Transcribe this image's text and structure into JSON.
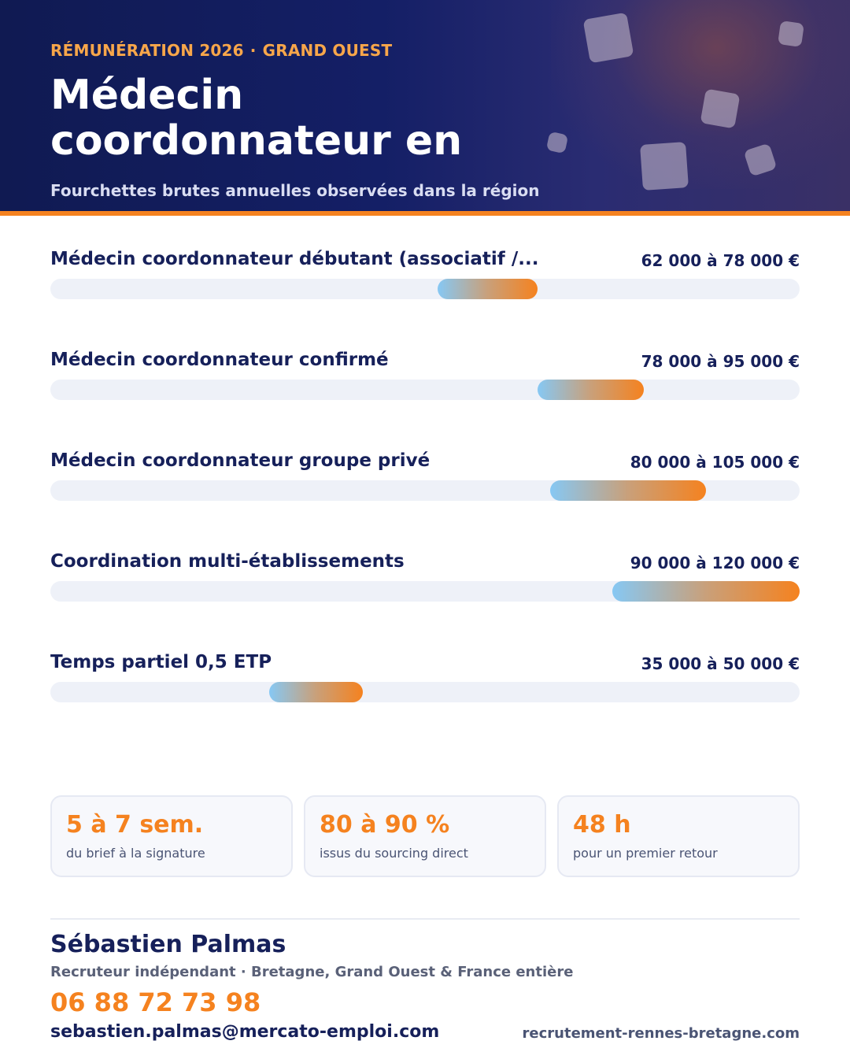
{
  "header": {
    "eyebrow_left": "RÉMUNÉRATION 2026",
    "eyebrow_sep": "·",
    "eyebrow_right": "GRAND OUEST",
    "title": "Médecin coordonnateur en",
    "subtitle": "Fourchettes brutes annuelles observées dans la région"
  },
  "chart_data": {
    "type": "bar",
    "orientation": "horizontal-range",
    "title": "Médecin coordonnateur en",
    "subtitle": "Fourchettes brutes annuelles observées dans la région",
    "unit": "€",
    "xlim": [
      0,
      120000
    ],
    "grid": false,
    "legend": "none",
    "categories": [
      "Médecin coordonnateur débutant (associatif /...",
      "Médecin coordonnateur confirmé",
      "Médecin coordonnateur groupe privé",
      "Coordination multi-établissements",
      "Temps partiel 0,5 ETP"
    ],
    "ranges": [
      {
        "min": 62000,
        "max": 78000,
        "label": "62 000 à 78 000 €"
      },
      {
        "min": 78000,
        "max": 95000,
        "label": "78 000 à 95 000 €"
      },
      {
        "min": 80000,
        "max": 105000,
        "label": "80 000 à 105 000 €"
      },
      {
        "min": 90000,
        "max": 120000,
        "label": "90 000 à 120 000 €"
      },
      {
        "min": 35000,
        "max": 50000,
        "label": "35 000 à 50 000 €"
      }
    ]
  },
  "stats": [
    {
      "value": "5 à 7 sem.",
      "caption": "du brief à la signature"
    },
    {
      "value": "80 à 90 %",
      "caption": "issus du sourcing direct"
    },
    {
      "value": "48 h",
      "caption": "pour un premier retour"
    }
  ],
  "contact": {
    "name": "Sébastien Palmas",
    "role": "Recruteur indépendant · Bretagne, Grand Ouest & France entière",
    "phone": "06 88 72 73 98",
    "email": "sebastien.palmas@mercato-emploi.com",
    "website": "recrutement-rennes-bretagne.com"
  },
  "colors": {
    "navy": "#16205a",
    "accent": "#f5821f",
    "bar_start": "#86c8f4",
    "bar_end": "#f5821f",
    "track": "#eef1f8"
  }
}
